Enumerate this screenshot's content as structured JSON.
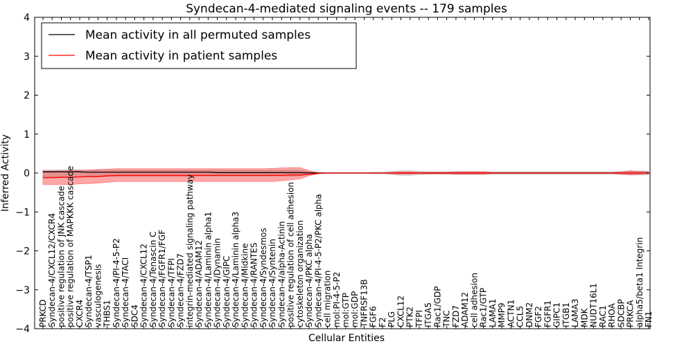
{
  "chart_data": {
    "type": "line",
    "title": "Syndecan-4-mediated signaling events -- 179 samples",
    "xlabel": "Cellular Entities",
    "ylabel": "Inferred Activity",
    "ylim": [
      -4,
      4
    ],
    "yticks": [
      -4,
      -3,
      -2,
      -1,
      0,
      1,
      2,
      3,
      4
    ],
    "ytick_labels": [
      "−4",
      "−3",
      "−2",
      "−1",
      "0",
      "1",
      "2",
      "3",
      "4"
    ],
    "legend_position": "top-left",
    "categories": [
      "PRKCD",
      "Syndecan-4/CXCL12/CXCR4",
      "positive regulation of JNK cascade",
      "positive regulation of MAPKKK cascade",
      "CXCR4",
      "Syndecan-4/TSP1",
      "vasculogenesis",
      "THBS1",
      "Syndecan-4/PI-4-5-P2",
      "Syndecan-4/TACI",
      "SDC4",
      "Syndecan-4/CXCL12",
      "Syndecan-4/Tenascin C",
      "Syndecan-4/FGFR1/FGF",
      "Syndecan-4/TFPI",
      "Syndecan-4/FZD7",
      "integrin-mediated signaling pathway",
      "Syndecan-4/ADAM12",
      "Syndecan-4/Laminin alpha1",
      "Syndecan-4/Dynamin",
      "Syndecan-4/GIPC",
      "Syndecan-4/Laminin alpha3",
      "Syndecan-4/Midkine",
      "Syndecan-4/RANTES",
      "Syndecan-4/Syndesmos",
      "Syndecan-4/Syntenin",
      "Syndecan-4/alpha-Actinin",
      "positive regulation of cell adhesion",
      "cytoskeleton organization",
      "Syndecan-4/PKC alpha",
      "Syndecan-4/PI-4-5-P2/PKC alpha",
      "cell migration",
      "mol:PI-4-5-P2",
      "mol:GTP",
      "mol:GDP",
      "TNFRSF13B",
      "FGF6",
      "F2",
      "PLG",
      "CXCL12",
      "PTK2",
      "TFPI",
      "ITGA5",
      "Rac1/GDP",
      "TNC",
      "FZD7",
      "ADAM12",
      "cell adhesion",
      "Rac1/GTP",
      "LAMA1",
      "MMP9",
      "ACTN1",
      "CCL5",
      "DNM2",
      "FGF2",
      "FGFR1",
      "GIPC1",
      "ITGB1",
      "LAMA3",
      "MDK",
      "NUDT16L1",
      "RAC1",
      "RHOA",
      "SDCBP",
      "PRKCA",
      "alpha5/beta1 Integrin",
      "FN1"
    ],
    "series": [
      {
        "name": "Mean activity in all permuted samples",
        "color": "#000000",
        "values": [
          0.03,
          0.03,
          0.03,
          0.03,
          0.03,
          0.02,
          0.02,
          0.02,
          0.02,
          0.02,
          0.02,
          0.02,
          0.02,
          0.02,
          0.02,
          0.02,
          0.02,
          0.02,
          0.02,
          0.01,
          0.01,
          0.01,
          0.01,
          0.01,
          0.01,
          0.01,
          0.01,
          0.01,
          0.01,
          0.005,
          0.0,
          0.0,
          0.0,
          0.0,
          0.0,
          0.0,
          0.0,
          0.0,
          0.0,
          0.0,
          0.0,
          0.0,
          0.0,
          0.0,
          0.0,
          0.0,
          0.0,
          0.0,
          0.0,
          0.0,
          0.0,
          0.0,
          0.0,
          0.0,
          0.0,
          0.0,
          0.0,
          0.0,
          0.0,
          0.0,
          0.0,
          0.0,
          0.0,
          0.0,
          0.0,
          0.0,
          0.0
        ],
        "band_lower": [
          -0.1,
          -0.1,
          -0.1,
          -0.1,
          -0.1,
          -0.1,
          -0.1,
          -0.09,
          -0.09,
          -0.09,
          -0.09,
          -0.09,
          -0.09,
          -0.09,
          -0.09,
          -0.09,
          -0.09,
          -0.08,
          -0.08,
          -0.08,
          -0.08,
          -0.08,
          -0.08,
          -0.08,
          -0.08,
          -0.08,
          -0.08,
          -0.08,
          -0.07,
          -0.04,
          -0.02,
          -0.01,
          -0.01,
          -0.01,
          -0.01,
          -0.01,
          -0.02,
          -0.02,
          -0.04,
          -0.06,
          -0.06,
          -0.04,
          -0.03,
          -0.03,
          -0.03,
          -0.04,
          -0.04,
          -0.04,
          -0.04,
          -0.03,
          -0.03,
          -0.03,
          -0.03,
          -0.03,
          -0.03,
          -0.03,
          -0.03,
          -0.03,
          -0.03,
          -0.03,
          -0.03,
          -0.03,
          -0.03,
          -0.04,
          -0.05,
          -0.05,
          -0.05
        ],
        "band_upper": [
          0.08,
          0.08,
          0.08,
          0.08,
          0.08,
          0.07,
          0.07,
          0.07,
          0.07,
          0.07,
          0.07,
          0.07,
          0.07,
          0.07,
          0.07,
          0.07,
          0.07,
          0.07,
          0.07,
          0.07,
          0.07,
          0.07,
          0.07,
          0.07,
          0.07,
          0.07,
          0.07,
          0.07,
          0.07,
          0.04,
          0.02,
          0.01,
          0.01,
          0.01,
          0.01,
          0.01,
          0.02,
          0.02,
          0.04,
          0.06,
          0.06,
          0.04,
          0.03,
          0.03,
          0.03,
          0.04,
          0.04,
          0.04,
          0.04,
          0.03,
          0.03,
          0.03,
          0.03,
          0.03,
          0.03,
          0.03,
          0.03,
          0.03,
          0.03,
          0.03,
          0.03,
          0.03,
          0.03,
          0.04,
          0.05,
          0.05,
          0.05
        ]
      },
      {
        "name": "Mean activity in patient samples",
        "color": "#ff0000",
        "values": [
          -0.12,
          -0.12,
          -0.11,
          -0.11,
          -0.1,
          -0.09,
          -0.09,
          -0.07,
          -0.06,
          -0.06,
          -0.06,
          -0.06,
          -0.06,
          -0.06,
          -0.06,
          -0.06,
          -0.06,
          -0.06,
          -0.06,
          -0.06,
          -0.06,
          -0.06,
          -0.06,
          -0.06,
          -0.06,
          -0.06,
          -0.06,
          -0.05,
          -0.05,
          -0.03,
          -0.01,
          0.0,
          0.0,
          0.0,
          0.0,
          0.0,
          0.0,
          0.0,
          0.0,
          0.0,
          0.0,
          0.0,
          0.0,
          0.0,
          0.0,
          0.0,
          0.0,
          0.0,
          0.0,
          0.0,
          0.0,
          0.0,
          0.0,
          0.0,
          0.0,
          0.0,
          0.0,
          0.0,
          0.0,
          0.0,
          0.0,
          0.0,
          0.0,
          0.0,
          0.0,
          0.0,
          0.0
        ],
        "band_lower": [
          -0.3,
          -0.3,
          -0.3,
          -0.3,
          -0.28,
          -0.27,
          -0.26,
          -0.24,
          -0.22,
          -0.22,
          -0.22,
          -0.22,
          -0.22,
          -0.22,
          -0.22,
          -0.22,
          -0.22,
          -0.22,
          -0.22,
          -0.22,
          -0.22,
          -0.22,
          -0.22,
          -0.22,
          -0.22,
          -0.22,
          -0.2,
          -0.18,
          -0.15,
          -0.07,
          -0.02,
          0.0,
          0.0,
          0.0,
          0.0,
          0.0,
          0.0,
          0.0,
          -0.02,
          -0.03,
          -0.03,
          -0.02,
          -0.02,
          -0.02,
          -0.02,
          -0.03,
          -0.03,
          -0.03,
          -0.03,
          -0.01,
          -0.01,
          -0.01,
          -0.01,
          -0.01,
          -0.01,
          -0.01,
          -0.01,
          -0.01,
          -0.01,
          -0.01,
          -0.01,
          -0.01,
          -0.01,
          -0.03,
          -0.05,
          -0.03,
          -0.02
        ],
        "band_upper": [
          0.05,
          0.05,
          0.06,
          0.06,
          0.07,
          0.08,
          0.09,
          0.1,
          0.11,
          0.11,
          0.11,
          0.11,
          0.11,
          0.11,
          0.11,
          0.11,
          0.11,
          0.11,
          0.11,
          0.11,
          0.11,
          0.11,
          0.11,
          0.11,
          0.11,
          0.12,
          0.13,
          0.14,
          0.14,
          0.06,
          0.01,
          0.0,
          0.0,
          0.0,
          0.0,
          0.0,
          0.0,
          0.0,
          0.02,
          0.03,
          0.03,
          0.02,
          0.02,
          0.02,
          0.02,
          0.03,
          0.03,
          0.03,
          0.03,
          0.01,
          0.01,
          0.01,
          0.01,
          0.01,
          0.01,
          0.01,
          0.01,
          0.01,
          0.01,
          0.01,
          0.01,
          0.01,
          0.01,
          0.03,
          0.06,
          0.04,
          0.03
        ]
      }
    ]
  }
}
